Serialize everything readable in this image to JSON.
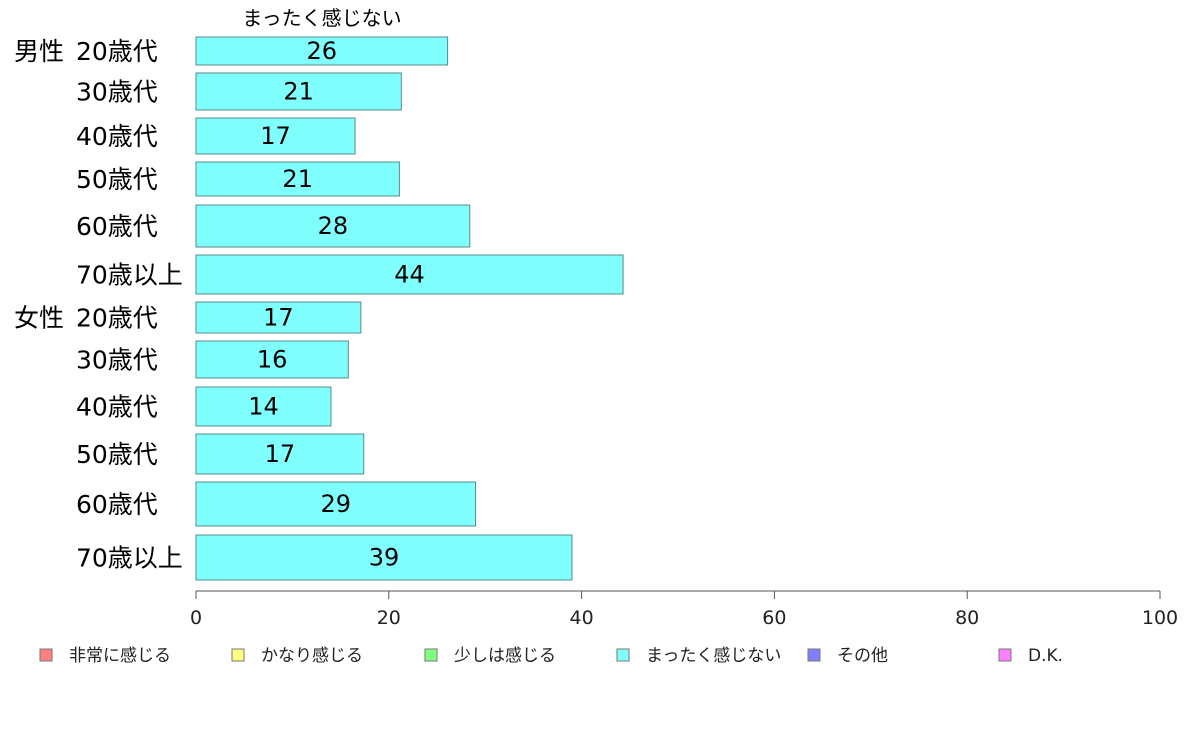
{
  "chart_data": {
    "type": "bar",
    "orientation": "horizontal",
    "series_title": "まったく感じない",
    "groups": [
      "男性",
      "女性"
    ],
    "categories": [
      {
        "group": "男性",
        "label": "20歳代"
      },
      {
        "group": "",
        "label": "30歳代"
      },
      {
        "group": "",
        "label": "40歳代"
      },
      {
        "group": "",
        "label": "50歳代"
      },
      {
        "group": "",
        "label": "60歳代"
      },
      {
        "group": "",
        "label": "70歳以上"
      },
      {
        "group": "女性",
        "label": "20歳代"
      },
      {
        "group": "",
        "label": "30歳代"
      },
      {
        "group": "",
        "label": "40歳代"
      },
      {
        "group": "",
        "label": "50歳代"
      },
      {
        "group": "",
        "label": "60歳代"
      },
      {
        "group": "",
        "label": "70歳以上"
      }
    ],
    "series": [
      {
        "name": "まったく感じない",
        "color": "#80FFFF",
        "values": [
          26,
          21,
          17,
          21,
          28,
          44,
          17,
          16,
          14,
          17,
          29,
          39
        ],
        "display_values": [
          26.1,
          21.3,
          16.5,
          21.1,
          28.4,
          44.3,
          17.1,
          15.8,
          14.0,
          17.4,
          29.0,
          39.0
        ]
      }
    ],
    "xlim": [
      0,
      100
    ],
    "xticks": [
      0,
      20,
      40,
      60,
      80,
      100
    ],
    "legend": {
      "placement": "bottom",
      "entries": [
        {
          "label": "非常に感じる",
          "color": "#FF8080"
        },
        {
          "label": "かなり感じる",
          "color": "#FFFF80"
        },
        {
          "label": "少しは感じる",
          "color": "#80FF80"
        },
        {
          "label": "まったく感じない",
          "color": "#80FFFF"
        },
        {
          "label": "その他",
          "color": "#8080FF"
        },
        {
          "label": "D.K.",
          "color": "#FF80FF"
        }
      ]
    },
    "grid": false
  }
}
